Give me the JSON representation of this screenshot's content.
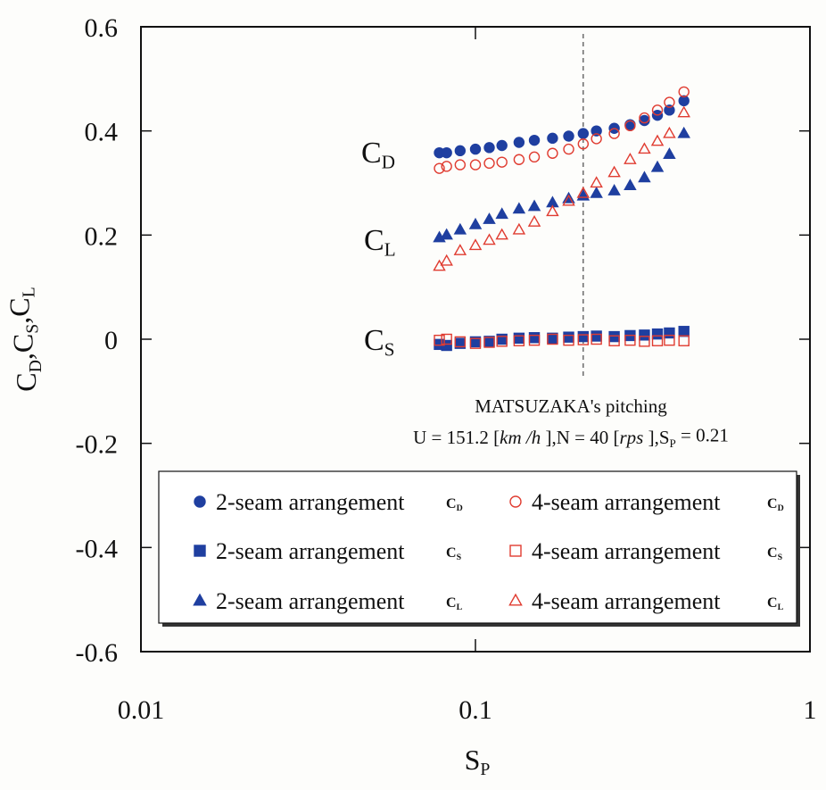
{
  "chart_data": {
    "type": "scatter",
    "xlabel": [
      "S",
      "P"
    ],
    "ylabel": [
      "C",
      "D",
      ",C",
      "S",
      ",C",
      "L"
    ],
    "xlog": true,
    "xlim": [
      0.01,
      1
    ],
    "xticks": [
      0.01,
      0.1,
      1
    ],
    "ylim": [
      -0.6,
      0.6
    ],
    "yticks": [
      -0.6,
      -0.4,
      -0.2,
      0,
      0.2,
      0.4,
      0.6
    ],
    "vline": 0.21,
    "curve_labels": [
      [
        "C",
        "D"
      ],
      [
        "C",
        "L"
      ],
      [
        "C",
        "S"
      ]
    ],
    "annotations": [
      "MATSUZAKA's pitching",
      [
        "U = 151.2 [",
        "km /h",
        " ],N = 40 [",
        "rps",
        " ],S",
        "P",
        " = 0.21"
      ]
    ],
    "x": [
      0.078,
      0.082,
      0.09,
      0.1,
      0.11,
      0.12,
      0.135,
      0.15,
      0.17,
      0.19,
      0.21,
      0.23,
      0.26,
      0.29,
      0.32,
      0.35,
      0.38,
      0.42
    ],
    "series": [
      {
        "name": "2-seam arrangement",
        "label": [
          "C",
          "D"
        ],
        "color": "#1f3fa0",
        "marker": "circle",
        "filled": true,
        "values": [
          0.358,
          0.358,
          0.362,
          0.365,
          0.368,
          0.372,
          0.378,
          0.382,
          0.386,
          0.39,
          0.395,
          0.4,
          0.405,
          0.412,
          0.42,
          0.43,
          0.44,
          0.458
        ]
      },
      {
        "name": "4-seam arrangement",
        "label": [
          "C",
          "D"
        ],
        "color": "#e03c31",
        "marker": "circle",
        "filled": false,
        "values": [
          0.328,
          0.332,
          0.335,
          0.335,
          0.338,
          0.34,
          0.345,
          0.35,
          0.357,
          0.365,
          0.375,
          0.385,
          0.395,
          0.41,
          0.425,
          0.44,
          0.455,
          0.475
        ]
      },
      {
        "name": "2-seam arrangement",
        "label": [
          "C",
          "S"
        ],
        "color": "#1f3fa0",
        "marker": "square",
        "filled": true,
        "values": [
          -0.01,
          -0.012,
          -0.008,
          -0.005,
          -0.004,
          0,
          0.002,
          0.003,
          0.002,
          0.004,
          0.005,
          0.006,
          0.005,
          0.007,
          0.008,
          0.01,
          0.012,
          0.015
        ]
      },
      {
        "name": "4-seam arrangement",
        "label": [
          "C",
          "S"
        ],
        "color": "#e03c31",
        "marker": "square",
        "filled": false,
        "values": [
          -0.002,
          0,
          -0.005,
          -0.008,
          -0.006,
          -0.004,
          -0.003,
          -0.002,
          0,
          -0.002,
          -0.001,
          0,
          -0.003,
          -0.002,
          -0.004,
          -0.003,
          -0.002,
          -0.003
        ]
      },
      {
        "name": "2-seam arrangement",
        "label": [
          "C",
          "L"
        ],
        "color": "#1f3fa0",
        "marker": "triangle",
        "filled": true,
        "values": [
          0.195,
          0.2,
          0.21,
          0.22,
          0.23,
          0.24,
          0.25,
          0.255,
          0.262,
          0.27,
          0.275,
          0.28,
          0.285,
          0.295,
          0.31,
          0.33,
          0.355,
          0.395
        ]
      },
      {
        "name": "4-seam arrangement",
        "label": [
          "C",
          "L"
        ],
        "color": "#e03c31",
        "marker": "triangle",
        "filled": false,
        "values": [
          0.14,
          0.15,
          0.17,
          0.18,
          0.19,
          0.2,
          0.21,
          0.225,
          0.245,
          0.265,
          0.28,
          0.3,
          0.32,
          0.345,
          0.365,
          0.38,
          0.395,
          0.435
        ]
      }
    ]
  }
}
